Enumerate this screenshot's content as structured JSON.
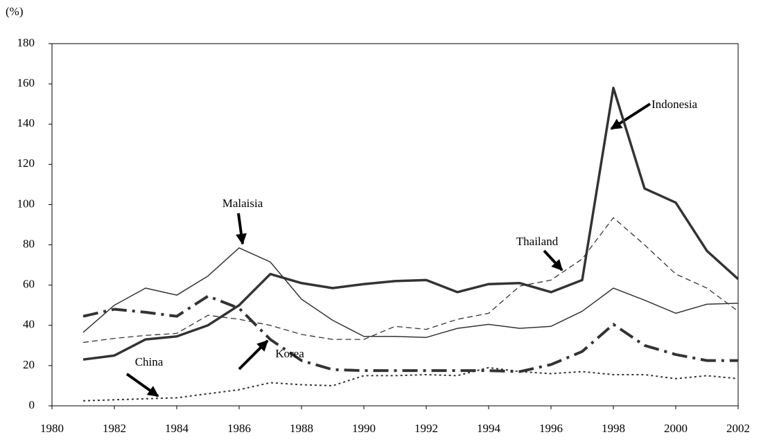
{
  "chart_data": {
    "type": "line",
    "y_unit_label": "(%)",
    "x": [
      1981,
      1982,
      1983,
      1984,
      1985,
      1986,
      1987,
      1988,
      1989,
      1990,
      1991,
      1992,
      1993,
      1994,
      1995,
      1996,
      1997,
      1998,
      1999,
      2000,
      2001,
      2002
    ],
    "series": [
      {
        "name": "Indonesia",
        "color": "#333333",
        "style": "thick-solid",
        "values": [
          23,
          25,
          33,
          34.5,
          40,
          50,
          65.5,
          61,
          58.5,
          60.5,
          62,
          62.5,
          56.5,
          60.5,
          61,
          56.5,
          62.5,
          158,
          108,
          101,
          77,
          63
        ]
      },
      {
        "name": "Malaisia",
        "color": "#333333",
        "style": "thin-solid",
        "values": [
          36.5,
          50,
          58.5,
          55,
          64.5,
          78.5,
          71.5,
          53,
          42.5,
          34.5,
          34.5,
          34,
          38.5,
          40.5,
          38.5,
          39.5,
          47,
          58.5,
          52.5,
          46,
          50.5,
          51
        ]
      },
      {
        "name": "Thailand",
        "color": "#333333",
        "style": "dashed",
        "values": [
          31.5,
          33.5,
          35,
          36,
          45,
          43,
          40,
          35.5,
          33,
          33,
          39.5,
          38,
          43,
          46,
          59.5,
          62.5,
          73,
          93.5,
          80,
          65.5,
          58.5,
          47
        ]
      },
      {
        "name": "Korea",
        "color": "#333333",
        "style": "thick-dashdot",
        "values": [
          44.5,
          48,
          46.5,
          44.5,
          54.5,
          48.5,
          33,
          22.5,
          18,
          17.5,
          17.5,
          17.5,
          17.5,
          17.5,
          17,
          20.5,
          27,
          40.5,
          30,
          25.5,
          22.5,
          22.5
        ]
      },
      {
        "name": "China",
        "color": "#333333",
        "style": "dotted",
        "values": [
          2.5,
          3,
          3.5,
          4,
          6,
          8,
          11.5,
          10.5,
          10,
          15,
          15,
          15.5,
          15,
          19,
          17,
          16,
          17,
          15.5,
          15.5,
          13.5,
          15,
          13.5
        ]
      }
    ],
    "xlim": [
      1980,
      2002
    ],
    "xticks": [
      1980,
      1982,
      1984,
      1986,
      1988,
      1990,
      1992,
      1994,
      1996,
      1998,
      2000,
      2002
    ],
    "ylim": [
      0,
      180
    ],
    "yticks": [
      0,
      20,
      40,
      60,
      80,
      100,
      120,
      140,
      160,
      180
    ],
    "grid": false
  }
}
